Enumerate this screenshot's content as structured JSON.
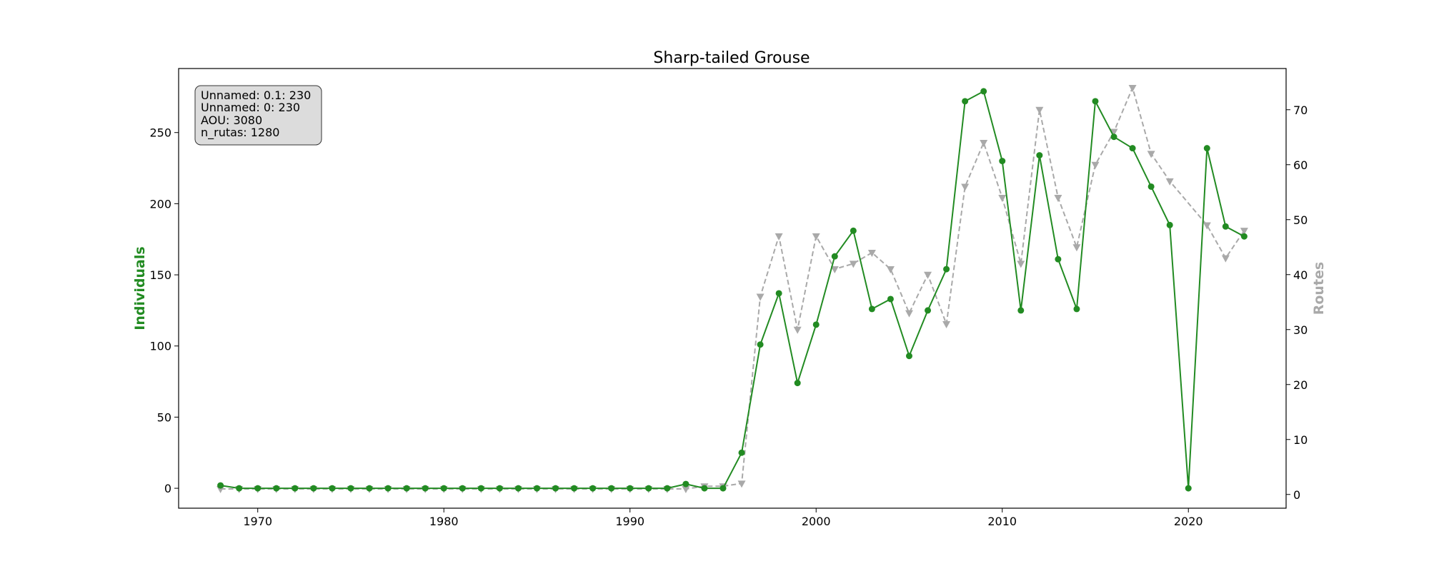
{
  "chart_data": {
    "type": "line",
    "title": "Sharp-tailed Grouse",
    "xlabel": "",
    "ylabel": "Individuals",
    "y2label": "Routes",
    "xlim": [
      1965.75,
      2025.25
    ],
    "ylim": [
      -14,
      295
    ],
    "y2lim": [
      -2.5,
      77.5
    ],
    "xticks": [
      1970,
      1980,
      1990,
      2000,
      2010,
      2020
    ],
    "yticks": [
      0,
      50,
      100,
      150,
      200,
      250
    ],
    "y2ticks": [
      0,
      10,
      20,
      30,
      40,
      50,
      60,
      70
    ],
    "grid": false,
    "info_box": {
      "position": "top-left",
      "lines": [
        "Unnamed: 0.1: 230",
        "Unnamed: 0: 230",
        "AOU: 3080",
        "n_rutas: 1280"
      ]
    },
    "colors": {
      "individuals": "#228B22",
      "routes": "#A9A9A9",
      "info_box_fill": "#dcdcdc"
    },
    "series": [
      {
        "axis": "left",
        "style": "solid",
        "marker": "circle",
        "x": [
          1968,
          1969,
          1970,
          1971,
          1972,
          1973,
          1974,
          1975,
          1976,
          1977,
          1978,
          1979,
          1980,
          1981,
          1982,
          1983,
          1984,
          1985,
          1986,
          1987,
          1988,
          1989,
          1990,
          1991,
          1992,
          1993,
          1994,
          1995,
          1996,
          1997,
          1998,
          1999,
          2000,
          2001,
          2002,
          2003,
          2004,
          2005,
          2006,
          2007,
          2008,
          2009,
          2010,
          2011,
          2012,
          2013,
          2014,
          2015,
          2016,
          2017,
          2018,
          2019,
          2020,
          2021,
          2022,
          2023
        ],
        "values": [
          2,
          0,
          0,
          0,
          0,
          0,
          0,
          0,
          0,
          0,
          0,
          0,
          0,
          0,
          0,
          0,
          0,
          0,
          0,
          0,
          0,
          0,
          0,
          0,
          0,
          3,
          0,
          0,
          25,
          101,
          137,
          74,
          115,
          163,
          181,
          126,
          133,
          93,
          125,
          154,
          272,
          279,
          230,
          125,
          234,
          161,
          126,
          272,
          247,
          239,
          212,
          185,
          0,
          239,
          184,
          177
        ]
      },
      {
        "axis": "right",
        "style": "dashed",
        "marker": "triangle-down",
        "x": [
          1968,
          1969,
          1970,
          1971,
          1972,
          1973,
          1974,
          1975,
          1976,
          1977,
          1978,
          1979,
          1980,
          1981,
          1982,
          1983,
          1984,
          1985,
          1986,
          1987,
          1988,
          1989,
          1990,
          1991,
          1992,
          1993,
          1994,
          1995,
          1996,
          1997,
          1998,
          1999,
          2000,
          2001,
          2002,
          2003,
          2004,
          2005,
          2006,
          2007,
          2008,
          2009,
          2010,
          2011,
          2012,
          2013,
          2014,
          2015,
          2016,
          2017,
          2018,
          2019,
          2021,
          2022,
          2023
        ],
        "values": [
          1,
          1,
          1,
          1,
          1,
          1,
          1,
          1,
          1,
          1,
          1,
          1,
          1,
          1,
          1,
          1,
          1,
          1,
          1,
          1,
          1,
          1,
          1,
          1,
          1,
          1,
          1.5,
          1.5,
          2,
          36,
          47,
          30,
          47,
          41,
          42,
          44,
          41,
          33,
          40,
          31,
          56,
          64,
          54,
          42,
          70,
          54,
          45,
          60,
          66,
          74,
          62,
          57,
          49,
          43,
          48
        ]
      }
    ]
  }
}
